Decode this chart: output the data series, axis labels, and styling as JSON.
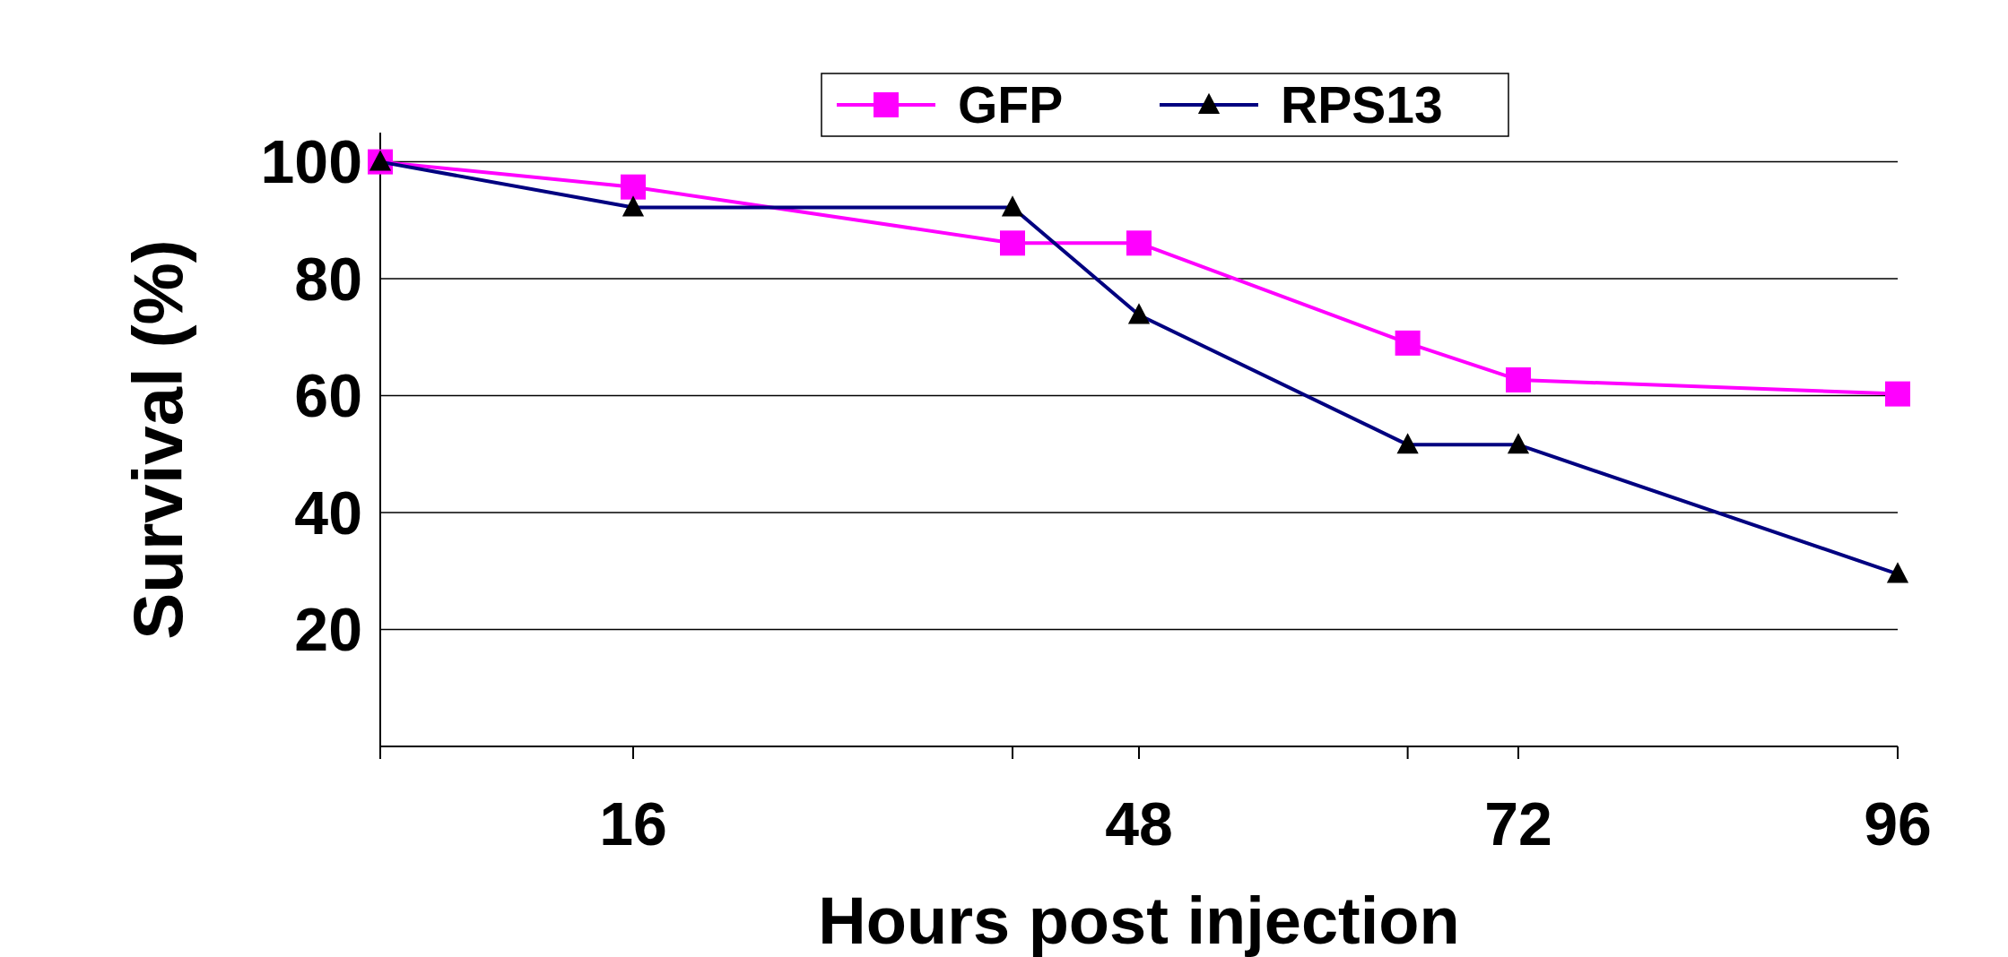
{
  "chart_data": {
    "type": "line",
    "xlabel": "Hours post injection",
    "ylabel": "Survival (%)",
    "xlim": [
      0,
      96
    ],
    "xticks": [
      {
        "value": 0,
        "label": null
      },
      16,
      {
        "value": 40,
        "label": null
      },
      48,
      {
        "value": 65,
        "label": null
      },
      72,
      96
    ],
    "ylim": [
      0,
      105
    ],
    "yticks": [
      20,
      40,
      60,
      80,
      100
    ],
    "grid": "y",
    "legend": "top",
    "line_style": "solid",
    "series": [
      {
        "name": "GFP",
        "color": "#ff00ff",
        "marker": "square",
        "x": [
          0,
          16,
          40,
          48,
          65,
          72,
          96
        ],
        "values": [
          100,
          95.7,
          86.1,
          86.1,
          69,
          62.7,
          60.3
        ]
      },
      {
        "name": "RPS13",
        "color": "#000080",
        "marker": "triangle",
        "x": [
          0,
          16,
          40,
          48,
          65,
          72,
          96
        ],
        "values": [
          100,
          92.2,
          92.2,
          73.8,
          51.6,
          51.6,
          29.5
        ]
      }
    ]
  }
}
